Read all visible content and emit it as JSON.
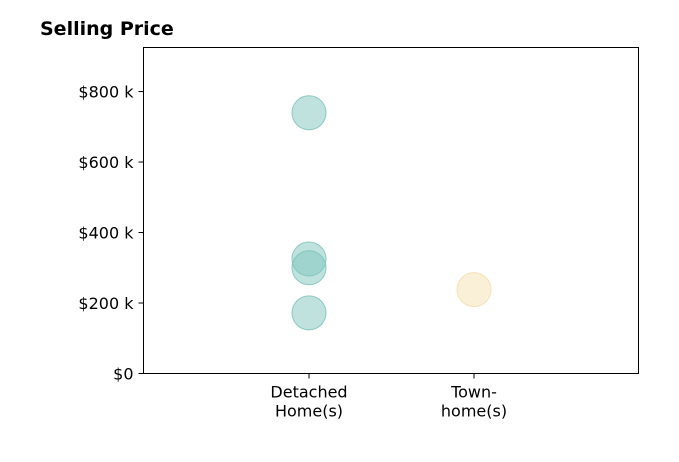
{
  "chart_data": {
    "type": "scatter",
    "title": "Selling Price",
    "xlabel": "",
    "ylabel": "",
    "categories": [
      [
        "Detached",
        "Home(s)"
      ],
      [
        "Town-",
        "home(s)"
      ]
    ],
    "ylim": [
      0,
      925000
    ],
    "yticks": [
      {
        "value": 0,
        "label": "$0"
      },
      {
        "value": 200000,
        "label": "$200 k"
      },
      {
        "value": 400000,
        "label": "$400 k"
      },
      {
        "value": 600000,
        "label": "$600 k"
      },
      {
        "value": 800000,
        "label": "$800 k"
      }
    ],
    "points": [
      {
        "category": 0,
        "value": 740000
      },
      {
        "category": 0,
        "value": 325000
      },
      {
        "category": 0,
        "value": 300000
      },
      {
        "category": 0,
        "value": 172000
      },
      {
        "category": 1,
        "value": 238000
      }
    ],
    "category_colors": [
      "#7fc5bd",
      "#f5dfaf"
    ],
    "grid": false,
    "legend": "none"
  }
}
